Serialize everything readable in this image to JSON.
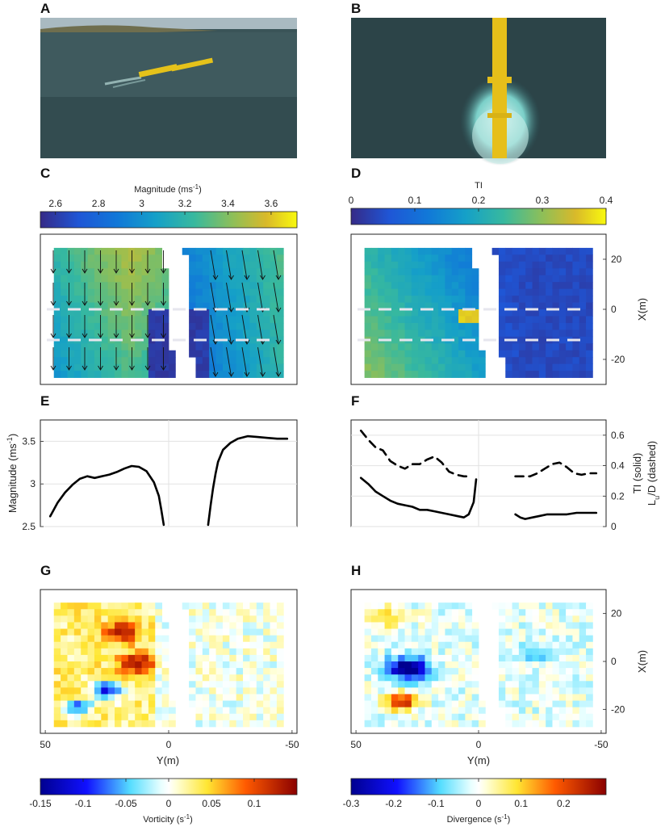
{
  "figure": {
    "panel_labels": [
      "A",
      "B",
      "C",
      "D",
      "E",
      "F",
      "G",
      "H"
    ],
    "photo_a": {
      "content": "turbine-on-water-oblique"
    },
    "photo_b": {
      "content": "turbine-wake-overhead"
    }
  },
  "colorbars": {
    "magnitude": {
      "label": "Magnitude (ms",
      "label_sup": "-1",
      "label_end": ")",
      "ticks": [
        "2.6",
        "2.8",
        "3",
        "3.2",
        "3.4",
        "3.6"
      ],
      "range": [
        2.53,
        3.72
      ],
      "colormap": "parula"
    },
    "ti": {
      "label": "TI",
      "ticks": [
        "0",
        "0.1",
        "0.2",
        "0.3",
        "0.4"
      ],
      "range": [
        0,
        0.4
      ],
      "colormap": "parula"
    },
    "vorticity": {
      "label": "Vorticity (s",
      "label_sup": "-1",
      "label_end": ")",
      "ticks": [
        "-0.15",
        "-0.1",
        "-0.05",
        "0",
        "0.05",
        "0.1"
      ],
      "range": [
        -0.15,
        0.15
      ],
      "colormap": "jet-white"
    },
    "divergence": {
      "label": "Divergence (s",
      "label_sup": "-1",
      "label_end": ")",
      "ticks": [
        "-0.3",
        "-0.2",
        "-0.1",
        "0",
        "0.1",
        "0.2"
      ],
      "range": [
        -0.3,
        0.3
      ],
      "colormap": "jet-white"
    }
  },
  "axes": {
    "x_right": {
      "label": "X(m)",
      "ticks": [
        "20",
        "0",
        "-20"
      ]
    },
    "y_bottom": {
      "label": "Y(m)",
      "ticks": [
        "50",
        "0",
        "-50"
      ]
    },
    "e_left": {
      "label": "Magnitude (ms",
      "label_sup": "-1",
      "label_end": ")",
      "ticks": [
        "3.5",
        "3",
        "2.5"
      ]
    },
    "f_right": {
      "label1": "TI (solid)",
      "label2_main": "L",
      "label2_sub": "u",
      "label2_end": "/D (dashed)",
      "ticks": [
        "0.6",
        "0.4",
        "0.2",
        "0"
      ]
    }
  },
  "chart_data": [
    {
      "panel": "E",
      "type": "line",
      "xlabel": "Y(m)",
      "ylabel": "Magnitude (ms-1)",
      "xlim": [
        52,
        -52
      ],
      "ylim": [
        2.5,
        3.75
      ],
      "grid": true,
      "series": [
        {
          "segment": "left",
          "x": [
            48,
            45,
            42,
            39,
            36,
            33,
            30,
            27,
            24,
            21,
            18,
            15,
            12,
            9,
            6,
            4,
            3,
            2
          ],
          "y": [
            2.62,
            2.78,
            2.9,
            2.99,
            3.06,
            3.09,
            3.07,
            3.09,
            3.11,
            3.14,
            3.18,
            3.21,
            3.2,
            3.15,
            3.02,
            2.86,
            2.7,
            2.52
          ]
        },
        {
          "segment": "right",
          "x": [
            -16,
            -17,
            -18,
            -19,
            -20,
            -22,
            -25,
            -28,
            -32,
            -36,
            -40,
            -44,
            -48
          ],
          "y": [
            2.52,
            2.75,
            2.95,
            3.12,
            3.26,
            3.4,
            3.48,
            3.53,
            3.56,
            3.55,
            3.54,
            3.53,
            3.53
          ]
        }
      ]
    },
    {
      "panel": "F",
      "type": "line",
      "xlabel": "Y(m)",
      "xlim": [
        52,
        -52
      ],
      "ylim": [
        0,
        0.7
      ],
      "grid": true,
      "series": [
        {
          "style": "solid",
          "quantity": "TI",
          "segment": "left",
          "x": [
            48,
            45,
            42,
            39,
            36,
            33,
            30,
            27,
            24,
            21,
            18,
            15,
            12,
            9,
            6,
            4,
            2,
            1
          ],
          "y": [
            0.32,
            0.28,
            0.23,
            0.2,
            0.17,
            0.15,
            0.14,
            0.13,
            0.11,
            0.11,
            0.1,
            0.09,
            0.08,
            0.07,
            0.06,
            0.08,
            0.16,
            0.31
          ]
        },
        {
          "style": "solid",
          "quantity": "TI",
          "segment": "right",
          "x": [
            -15,
            -17,
            -19,
            -22,
            -25,
            -28,
            -32,
            -36,
            -40,
            -44,
            -48
          ],
          "y": [
            0.08,
            0.06,
            0.05,
            0.06,
            0.07,
            0.08,
            0.08,
            0.08,
            0.09,
            0.09,
            0.09
          ]
        },
        {
          "style": "dashed",
          "quantity": "Lu/D",
          "segment": "left",
          "x": [
            48,
            45,
            42,
            39,
            36,
            33,
            30,
            27,
            24,
            21,
            18,
            15,
            12,
            9,
            6,
            4
          ],
          "y": [
            0.63,
            0.57,
            0.52,
            0.5,
            0.43,
            0.4,
            0.38,
            0.41,
            0.41,
            0.44,
            0.46,
            0.42,
            0.36,
            0.34,
            0.33,
            0.33
          ]
        },
        {
          "style": "dashed",
          "quantity": "Lu/D",
          "segment": "right",
          "x": [
            -15,
            -18,
            -21,
            -24,
            -27,
            -30,
            -33,
            -36,
            -39,
            -42,
            -45,
            -48
          ],
          "y": [
            0.33,
            0.33,
            0.33,
            0.35,
            0.38,
            0.41,
            0.42,
            0.39,
            0.35,
            0.34,
            0.35,
            0.35
          ]
        }
      ]
    },
    {
      "panel": "C",
      "type": "heatmap",
      "quantity": "Magnitude (ms-1)",
      "xlim": [
        52,
        -52
      ],
      "ylim": [
        -30,
        30
      ],
      "overlay": "velocity vectors",
      "dashed_lines_x": [
        0,
        -13
      ],
      "description_of_field": "low (~2.6) at near-field wake edges, rising to ~3.2 on left region and ~3.6 on far right"
    },
    {
      "panel": "D",
      "type": "heatmap",
      "quantity": "TI",
      "xlim": [
        52,
        -52
      ],
      "ylim": [
        -30,
        30
      ],
      "dashed_lines_x": [
        0,
        -13
      ]
    },
    {
      "panel": "G",
      "type": "heatmap",
      "quantity": "Vorticity (s-1)",
      "xlim": [
        52,
        -52
      ],
      "ylim": [
        -30,
        30
      ],
      "features": [
        {
          "x": 20,
          "y": 13,
          "value": 0.12
        },
        {
          "x": 13,
          "y": 1,
          "value": 0.13
        },
        {
          "x": 27,
          "y": -11,
          "value": -0.13
        },
        {
          "x": 34,
          "y": -19,
          "value": -0.12
        }
      ]
    },
    {
      "panel": "H",
      "type": "heatmap",
      "quantity": "Divergence (s-1)",
      "xlim": [
        52,
        -52
      ],
      "ylim": [
        -30,
        30
      ],
      "features": [
        {
          "x": 33,
          "y": -3,
          "value": -0.27
        },
        {
          "x": 31,
          "y": -16,
          "value": 0.25
        },
        {
          "x": 25,
          "y": 17,
          "value": 0.08
        }
      ]
    }
  ]
}
